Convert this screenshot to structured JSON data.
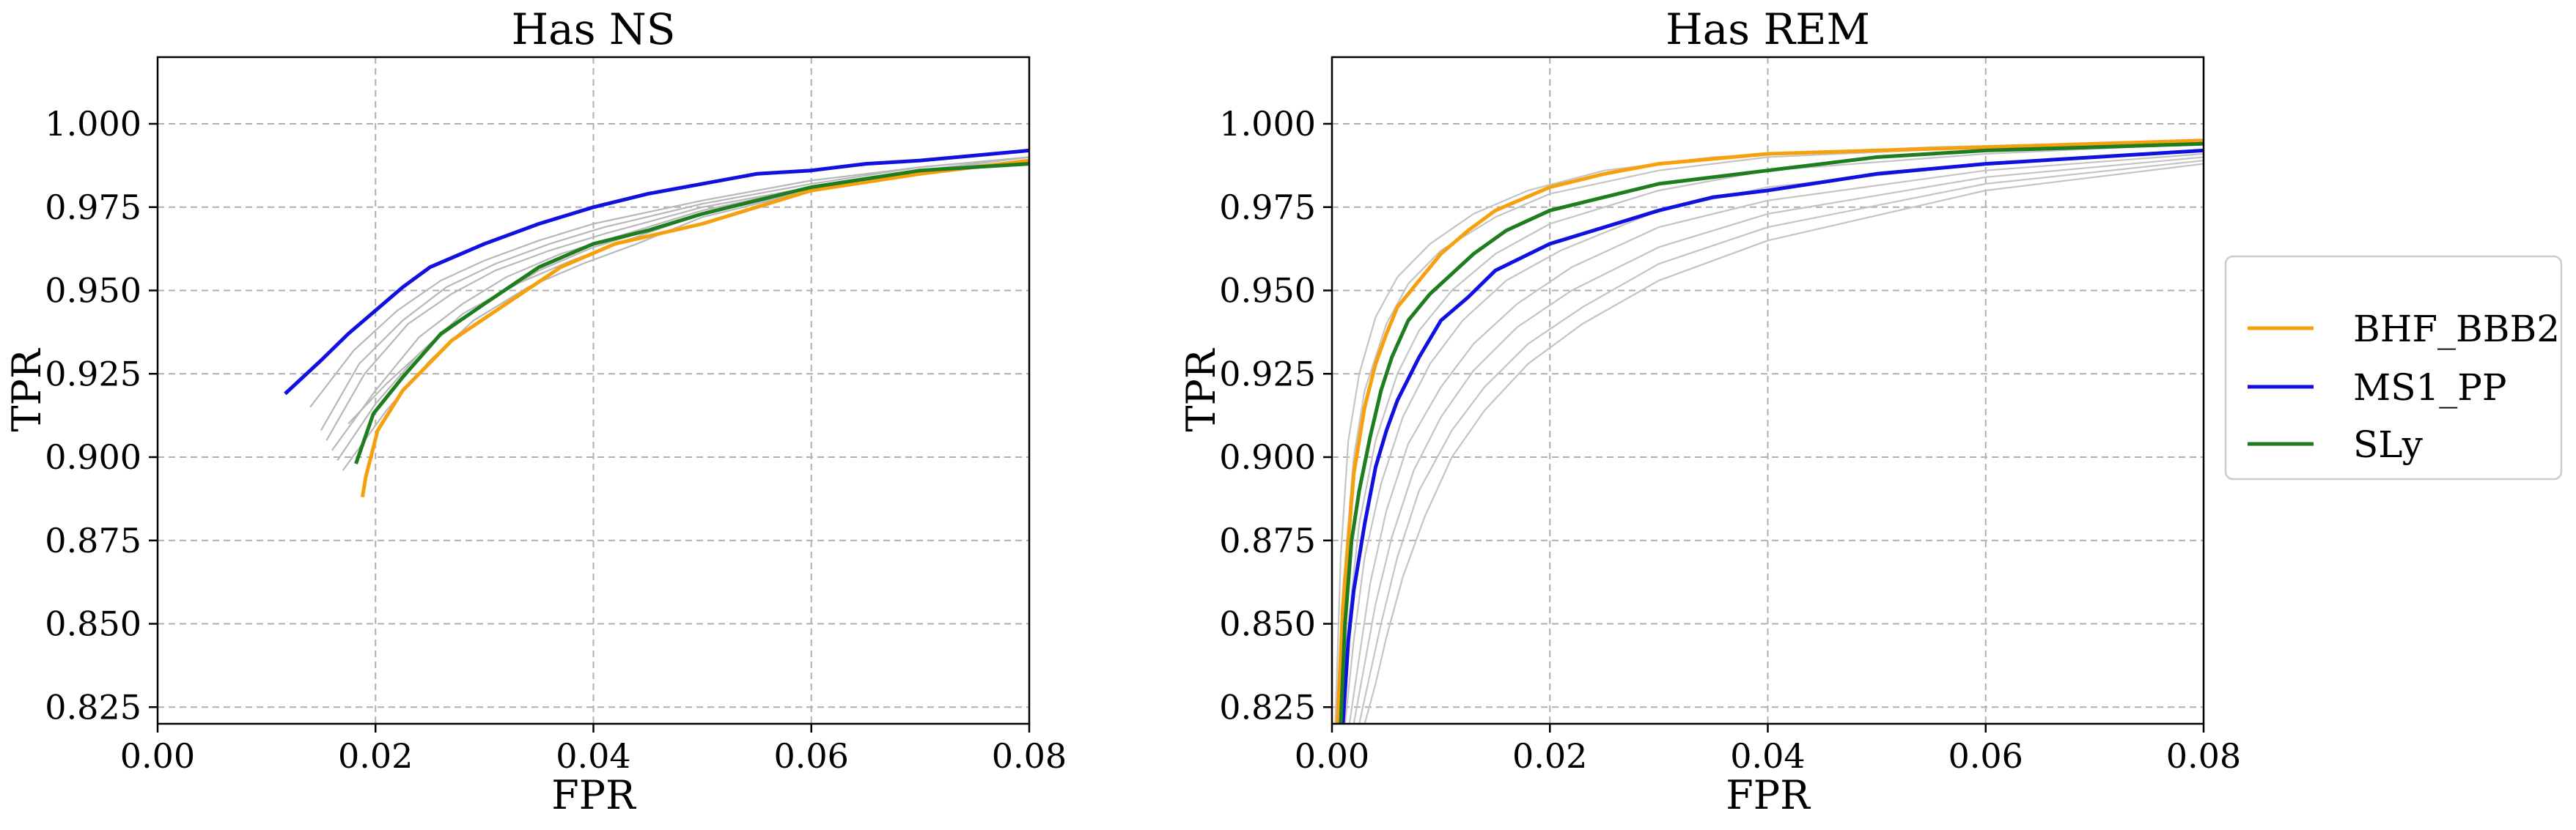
{
  "chart_data": [
    {
      "type": "line",
      "title": "Has NS",
      "xlabel": "FPR",
      "ylabel": "TPR",
      "xlim": [
        0.0,
        0.08
      ],
      "ylim": [
        0.82,
        1.02
      ],
      "xticks": [
        0.0,
        0.02,
        0.04,
        0.06,
        0.08
      ],
      "xtick_labels": [
        "0.00",
        "0.02",
        "0.04",
        "0.06",
        "0.08"
      ],
      "yticks": [
        0.825,
        0.85,
        0.875,
        0.9,
        0.925,
        0.95,
        0.975,
        1.0
      ],
      "ytick_labels": [
        "0.825",
        "0.850",
        "0.875",
        "0.900",
        "0.925",
        "0.950",
        "0.975",
        "1.000"
      ],
      "grid": true,
      "series": [
        {
          "name": "BHF_BBB2",
          "color": "#f5a00c",
          "x": [
            0.0188,
            0.0191,
            0.0202,
            0.0225,
            0.027,
            0.032,
            0.037,
            0.042,
            0.05,
            0.06,
            0.07,
            0.08
          ],
          "y": [
            0.888,
            0.894,
            0.908,
            0.92,
            0.935,
            0.946,
            0.957,
            0.964,
            0.97,
            0.98,
            0.985,
            0.989
          ]
        },
        {
          "name": "MS1_PP",
          "color": "#1010e0",
          "x": [
            0.0117,
            0.015,
            0.0175,
            0.02,
            0.0225,
            0.025,
            0.03,
            0.035,
            0.04,
            0.045,
            0.05,
            0.055,
            0.06,
            0.065,
            0.07,
            0.08
          ],
          "y": [
            0.919,
            0.929,
            0.937,
            0.944,
            0.951,
            0.957,
            0.964,
            0.97,
            0.975,
            0.979,
            0.982,
            0.985,
            0.986,
            0.988,
            0.989,
            0.992
          ]
        },
        {
          "name": "SLy",
          "color": "#1e7d1e",
          "x": [
            0.0182,
            0.0198,
            0.0225,
            0.026,
            0.03,
            0.035,
            0.04,
            0.045,
            0.05,
            0.06,
            0.07,
            0.08
          ],
          "y": [
            0.898,
            0.913,
            0.924,
            0.937,
            0.946,
            0.957,
            0.964,
            0.968,
            0.973,
            0.981,
            0.986,
            0.988
          ]
        }
      ],
      "background_series_color": "#b8b8b8",
      "background_series": [
        {
          "x": [
            0.014,
            0.018,
            0.022,
            0.026,
            0.03,
            0.035,
            0.04,
            0.05,
            0.06,
            0.07,
            0.08
          ],
          "y": [
            0.915,
            0.932,
            0.944,
            0.953,
            0.959,
            0.965,
            0.97,
            0.977,
            0.983,
            0.987,
            0.99
          ]
        },
        {
          "x": [
            0.0155,
            0.019,
            0.023,
            0.027,
            0.031,
            0.036,
            0.041,
            0.05,
            0.06,
            0.07,
            0.08
          ],
          "y": [
            0.905,
            0.925,
            0.94,
            0.949,
            0.956,
            0.962,
            0.967,
            0.975,
            0.981,
            0.986,
            0.989
          ]
        },
        {
          "x": [
            0.016,
            0.02,
            0.024,
            0.028,
            0.032,
            0.037,
            0.042,
            0.05,
            0.06,
            0.07,
            0.08
          ],
          "y": [
            0.902,
            0.92,
            0.936,
            0.946,
            0.954,
            0.961,
            0.966,
            0.974,
            0.981,
            0.986,
            0.99
          ]
        },
        {
          "x": [
            0.0165,
            0.02,
            0.024,
            0.028,
            0.033,
            0.038,
            0.043,
            0.05,
            0.06,
            0.07,
            0.08
          ],
          "y": [
            0.899,
            0.916,
            0.931,
            0.943,
            0.952,
            0.959,
            0.965,
            0.973,
            0.98,
            0.985,
            0.989
          ]
        },
        {
          "x": [
            0.017,
            0.021,
            0.025,
            0.029,
            0.034,
            0.039,
            0.044,
            0.05,
            0.06,
            0.07,
            0.08
          ],
          "y": [
            0.896,
            0.914,
            0.929,
            0.941,
            0.951,
            0.958,
            0.964,
            0.972,
            0.98,
            0.985,
            0.989
          ]
        },
        {
          "x": [
            0.0175,
            0.021,
            0.025,
            0.03,
            0.035,
            0.04,
            0.045,
            0.05,
            0.06,
            0.07,
            0.08
          ],
          "y": [
            0.91,
            0.922,
            0.934,
            0.946,
            0.956,
            0.963,
            0.968,
            0.973,
            0.981,
            0.986,
            0.99
          ]
        },
        {
          "x": [
            0.015,
            0.0185,
            0.0225,
            0.0265,
            0.031,
            0.036,
            0.041,
            0.05,
            0.06,
            0.07,
            0.08
          ],
          "y": [
            0.908,
            0.928,
            0.941,
            0.951,
            0.958,
            0.964,
            0.969,
            0.976,
            0.982,
            0.987,
            0.99
          ]
        }
      ]
    },
    {
      "type": "line",
      "title": "Has REM",
      "xlabel": "FPR",
      "ylabel": "TPR",
      "xlim": [
        0.0,
        0.08
      ],
      "ylim": [
        0.82,
        1.02
      ],
      "xticks": [
        0.0,
        0.02,
        0.04,
        0.06,
        0.08
      ],
      "xtick_labels": [
        "0.00",
        "0.02",
        "0.04",
        "0.06",
        "0.08"
      ],
      "yticks": [
        0.825,
        0.85,
        0.875,
        0.9,
        0.925,
        0.95,
        0.975,
        1.0
      ],
      "ytick_labels": [
        "0.825",
        "0.850",
        "0.875",
        "0.900",
        "0.925",
        "0.950",
        "0.975",
        "1.000"
      ],
      "grid": true,
      "series": [
        {
          "name": "BHF_BBB2",
          "color": "#f5a00c",
          "x": [
            0.0005,
            0.001,
            0.0015,
            0.002,
            0.003,
            0.004,
            0.005,
            0.006,
            0.008,
            0.01,
            0.0125,
            0.015,
            0.02,
            0.025,
            0.03,
            0.04,
            0.05,
            0.06,
            0.07,
            0.08
          ],
          "y": [
            0.82,
            0.855,
            0.875,
            0.895,
            0.915,
            0.928,
            0.937,
            0.945,
            0.953,
            0.961,
            0.968,
            0.974,
            0.981,
            0.985,
            0.988,
            0.991,
            0.992,
            0.993,
            0.994,
            0.995
          ]
        },
        {
          "name": "MS1_PP",
          "color": "#1010e0",
          "x": [
            0.001,
            0.0015,
            0.002,
            0.003,
            0.004,
            0.005,
            0.006,
            0.008,
            0.01,
            0.0125,
            0.015,
            0.02,
            0.025,
            0.03,
            0.035,
            0.04,
            0.05,
            0.06,
            0.07,
            0.08
          ],
          "y": [
            0.82,
            0.845,
            0.86,
            0.88,
            0.897,
            0.908,
            0.917,
            0.93,
            0.941,
            0.948,
            0.956,
            0.964,
            0.969,
            0.974,
            0.978,
            0.98,
            0.985,
            0.988,
            0.99,
            0.992
          ]
        },
        {
          "name": "SLy",
          "color": "#1e7d1e",
          "x": [
            0.0008,
            0.0012,
            0.0018,
            0.0025,
            0.0035,
            0.0045,
            0.0055,
            0.007,
            0.009,
            0.011,
            0.013,
            0.016,
            0.02,
            0.025,
            0.03,
            0.04,
            0.05,
            0.06,
            0.07,
            0.08
          ],
          "y": [
            0.82,
            0.85,
            0.875,
            0.89,
            0.906,
            0.92,
            0.93,
            0.941,
            0.949,
            0.955,
            0.961,
            0.968,
            0.974,
            0.978,
            0.982,
            0.986,
            0.99,
            0.992,
            0.993,
            0.994
          ]
        }
      ],
      "background_series_color": "#c4c4c4",
      "background_series": [
        {
          "x": [
            0.0005,
            0.001,
            0.002,
            0.003,
            0.005,
            0.007,
            0.01,
            0.015,
            0.02,
            0.03,
            0.04,
            0.06,
            0.08
          ],
          "y": [
            0.82,
            0.86,
            0.9,
            0.92,
            0.94,
            0.952,
            0.962,
            0.972,
            0.979,
            0.986,
            0.99,
            0.993,
            0.995
          ]
        },
        {
          "x": [
            0.0008,
            0.0015,
            0.0025,
            0.004,
            0.006,
            0.008,
            0.011,
            0.015,
            0.02,
            0.03,
            0.04,
            0.06,
            0.08
          ],
          "y": [
            0.82,
            0.85,
            0.88,
            0.905,
            0.925,
            0.938,
            0.95,
            0.961,
            0.97,
            0.98,
            0.986,
            0.991,
            0.994
          ]
        },
        {
          "x": [
            0.0012,
            0.002,
            0.003,
            0.0045,
            0.0065,
            0.009,
            0.012,
            0.016,
            0.021,
            0.03,
            0.04,
            0.06,
            0.08
          ],
          "y": [
            0.82,
            0.845,
            0.87,
            0.892,
            0.912,
            0.928,
            0.941,
            0.953,
            0.962,
            0.974,
            0.981,
            0.988,
            0.992
          ]
        },
        {
          "x": [
            0.0016,
            0.0025,
            0.0035,
            0.005,
            0.007,
            0.01,
            0.013,
            0.017,
            0.022,
            0.03,
            0.04,
            0.06,
            0.08
          ],
          "y": [
            0.82,
            0.84,
            0.862,
            0.884,
            0.904,
            0.921,
            0.934,
            0.946,
            0.957,
            0.969,
            0.977,
            0.986,
            0.991
          ]
        },
        {
          "x": [
            0.002,
            0.003,
            0.004,
            0.0055,
            0.0075,
            0.01,
            0.013,
            0.017,
            0.022,
            0.03,
            0.04,
            0.06,
            0.08
          ],
          "y": [
            0.82,
            0.838,
            0.856,
            0.876,
            0.896,
            0.912,
            0.926,
            0.939,
            0.95,
            0.963,
            0.973,
            0.984,
            0.99
          ]
        },
        {
          "x": [
            0.0025,
            0.0035,
            0.0045,
            0.006,
            0.008,
            0.011,
            0.014,
            0.018,
            0.023,
            0.03,
            0.04,
            0.06,
            0.08
          ],
          "y": [
            0.82,
            0.835,
            0.85,
            0.87,
            0.89,
            0.908,
            0.921,
            0.934,
            0.945,
            0.958,
            0.969,
            0.982,
            0.989
          ]
        },
        {
          "x": [
            0.0003,
            0.0008,
            0.0015,
            0.0025,
            0.004,
            0.006,
            0.009,
            0.013,
            0.018,
            0.025,
            0.035,
            0.055,
            0.08
          ],
          "y": [
            0.82,
            0.87,
            0.905,
            0.925,
            0.942,
            0.954,
            0.964,
            0.973,
            0.98,
            0.986,
            0.99,
            0.993,
            0.995
          ]
        },
        {
          "x": [
            0.003,
            0.004,
            0.005,
            0.0065,
            0.0085,
            0.011,
            0.014,
            0.018,
            0.023,
            0.03,
            0.04,
            0.06,
            0.08
          ],
          "y": [
            0.82,
            0.832,
            0.846,
            0.864,
            0.882,
            0.9,
            0.914,
            0.928,
            0.94,
            0.953,
            0.965,
            0.98,
            0.988
          ]
        }
      ]
    }
  ],
  "legend": {
    "placement": "right of figure",
    "entries": [
      {
        "label": "BHF_BBB2",
        "color": "#f5a00c"
      },
      {
        "label": "MS1_PP",
        "color": "#1010e0"
      },
      {
        "label": "SLy",
        "color": "#1e7d1e"
      }
    ]
  }
}
